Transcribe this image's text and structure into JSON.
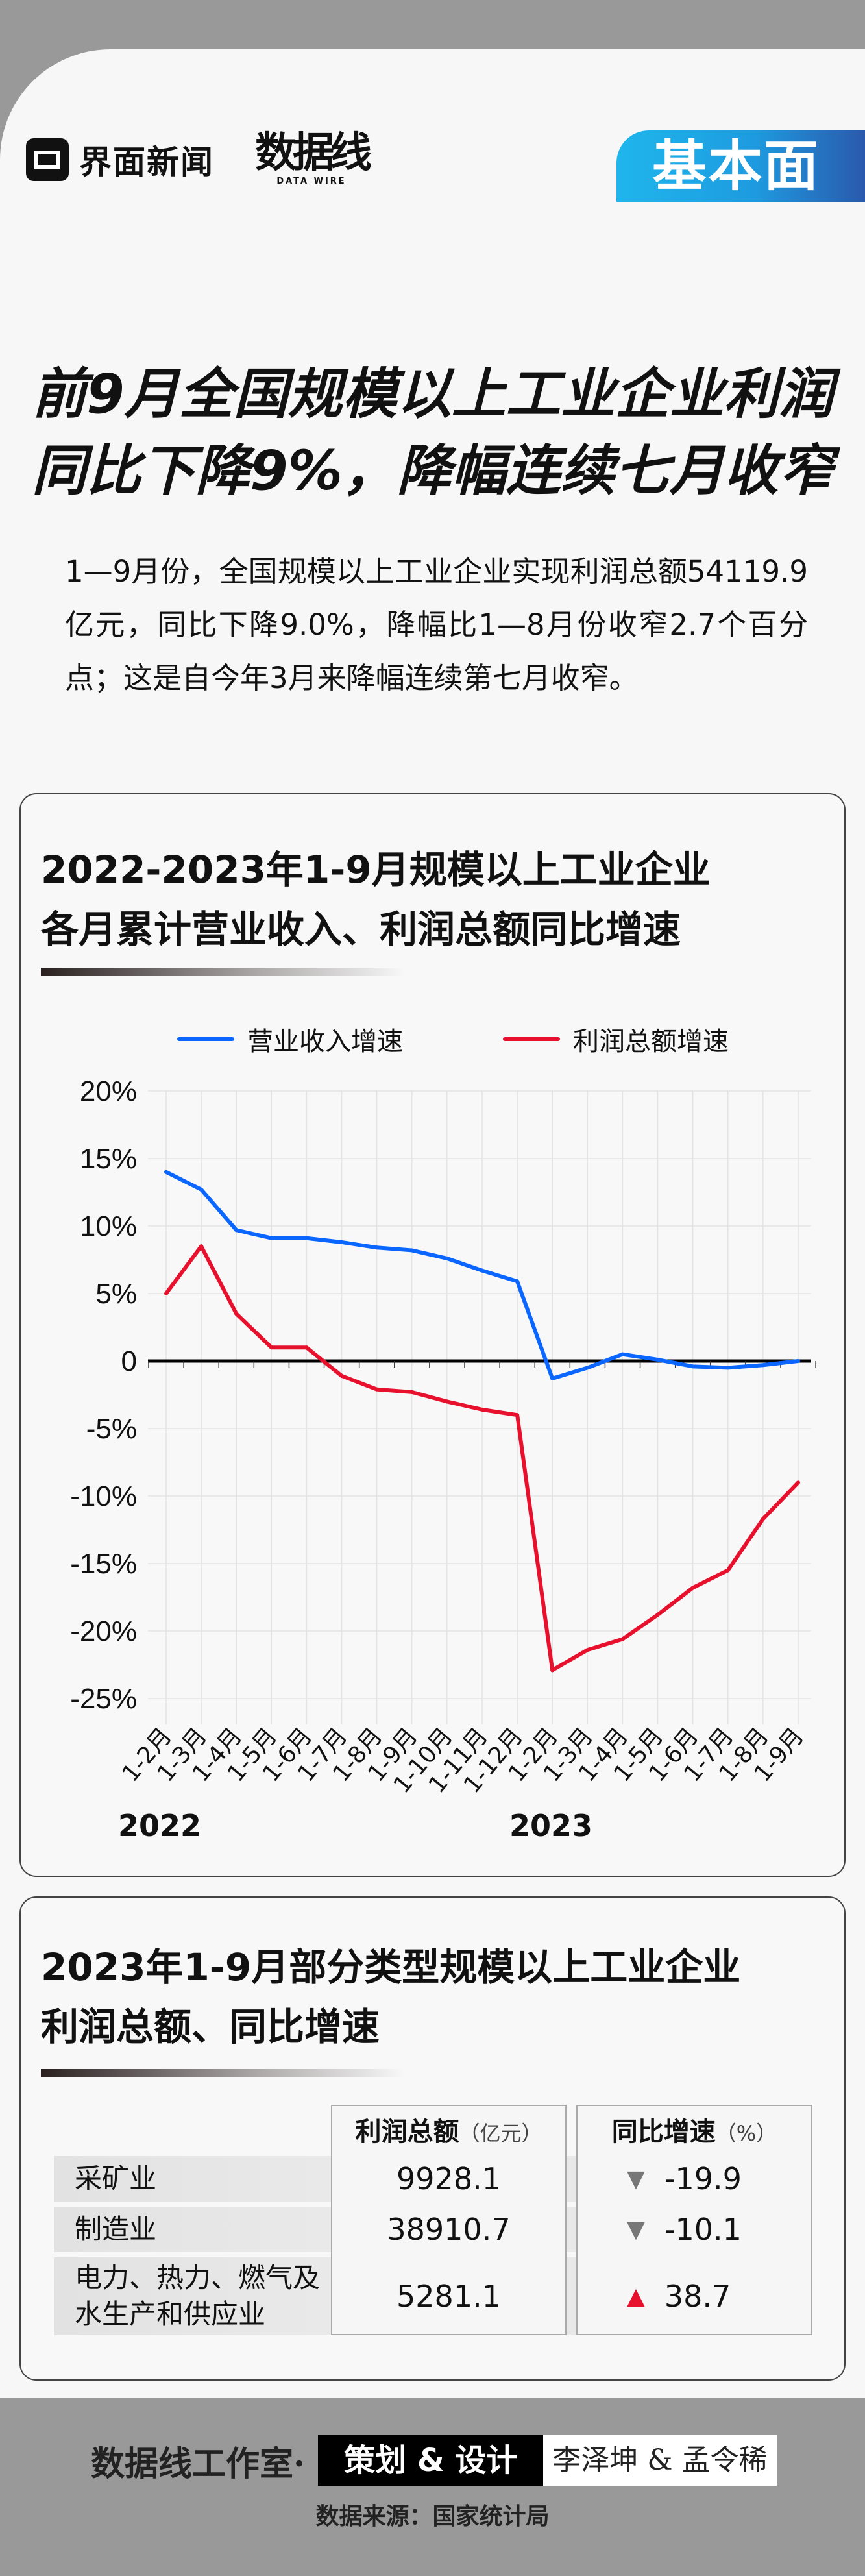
{
  "header": {
    "brand": "界面新闻",
    "brand2": "数据线",
    "brand2_sub": "DATA WIRE",
    "badge": "基本面"
  },
  "headline": {
    "line1": "前9月全国规模以上工业企业利润",
    "line2": "同比下降9%，降幅连续七月收窄"
  },
  "lead": "1—9月份，全国规模以上工业企业实现利润总额54119.9亿元，同比下降9.0%，降幅比1—8月份收窄2.7个百分点；这是自今年3月来降幅连续第七月收窄。",
  "chart_data": {
    "type": "line",
    "title_line1": "2022-2023年1-9月规模以上工业企业",
    "title_line2": "各月累计营业收入、利润总额同比增速",
    "categories": [
      "1-2月",
      "1-3月",
      "1-4月",
      "1-5月",
      "1-6月",
      "1-7月",
      "1-8月",
      "1-9月",
      "1-10月",
      "1-11月",
      "1-12月",
      "1-2月",
      "1-3月",
      "1-4月",
      "1-5月",
      "1-6月",
      "1-7月",
      "1-8月",
      "1-9月"
    ],
    "year_labels": [
      "2022",
      "2023"
    ],
    "yticks": [
      "20%",
      "15%",
      "10%",
      "5%",
      "0",
      "-5%",
      "-10%",
      "-15%",
      "-20%",
      "-25%"
    ],
    "ylim": [
      -25,
      20
    ],
    "unit": "%",
    "grid": true,
    "legend_position": "top",
    "series": [
      {
        "name": "营业收入增速",
        "color": "#0a66ff",
        "values": [
          14.0,
          12.7,
          9.7,
          9.1,
          9.1,
          8.8,
          8.4,
          8.2,
          7.6,
          6.7,
          5.9,
          -1.3,
          -0.5,
          0.5,
          0.1,
          -0.4,
          -0.5,
          -0.3,
          0.0
        ]
      },
      {
        "name": "利润总额增速",
        "color": "#e8112d",
        "values": [
          5.0,
          8.5,
          3.5,
          1.0,
          1.0,
          -1.1,
          -2.1,
          -2.3,
          -3.0,
          -3.6,
          -4.0,
          -22.9,
          -21.4,
          -20.6,
          -18.8,
          -16.8,
          -15.5,
          -11.7,
          -9.0
        ]
      }
    ]
  },
  "table": {
    "title_line1": "2023年1-9月部分类型规模以上工业企业",
    "title_line2": "利润总额、同比增速",
    "col1": "利润总额",
    "col1_unit": "（亿元）",
    "col2": "同比增速",
    "col2_unit": "（%）",
    "rows": [
      {
        "label": "采矿业",
        "label2": "",
        "profit": "9928.1",
        "growth": "-19.9",
        "dir": "down"
      },
      {
        "label": "制造业",
        "label2": "",
        "profit": "38910.7",
        "growth": "-10.1",
        "dir": "down"
      },
      {
        "label": "电力、热力、燃气及",
        "label2": "水生产和供应业",
        "profit": "5281.1",
        "growth": "38.7",
        "dir": "up"
      }
    ],
    "down_color": "#777777",
    "up_color": "#e8112d",
    "down_icon": "▼",
    "up_icon": "▲"
  },
  "footer": {
    "studio": "数据线工作室·",
    "role": "策划 & 设计",
    "names": "李泽坤 & 孟令稀",
    "source": "数据来源：国家统计局"
  }
}
